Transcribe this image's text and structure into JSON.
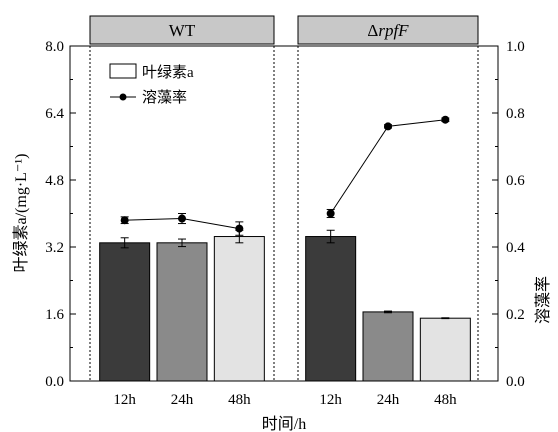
{
  "chart_data": {
    "type": "bar",
    "panels": [
      {
        "title": "WT",
        "categories": [
          "12h",
          "24h",
          "48h"
        ],
        "chlorophyll_a": {
          "values": [
            3.3,
            3.3,
            3.45
          ],
          "errors": [
            0.12,
            0.09,
            0.15
          ],
          "fills": [
            "#3b3b3b",
            "#8a8a8a",
            "#e3e3e3"
          ]
        },
        "lysis_rate": {
          "values": [
            0.48,
            0.485,
            0.455
          ],
          "errors": [
            0.01,
            0.015,
            0.02
          ]
        }
      },
      {
        "title_prefix": "Δ",
        "title_italic": "rpfF",
        "categories": [
          "12h",
          "24h",
          "48h"
        ],
        "chlorophyll_a": {
          "values": [
            3.45,
            1.65,
            1.5
          ],
          "errors": [
            0.15,
            0.02,
            0.01
          ],
          "fills": [
            "#3b3b3b",
            "#8a8a8a",
            "#e3e3e3"
          ]
        },
        "lysis_rate": {
          "values": [
            0.5,
            0.76,
            0.78
          ],
          "errors": [
            0.012,
            0.005,
            0.005
          ]
        }
      }
    ],
    "xlabel": "时间/h",
    "ylabel_left": "叶绿素a/(mg·L⁻¹)",
    "ylabel_right": "溶藻率",
    "ylim_left": [
      0,
      8.0
    ],
    "ylim_right": [
      0,
      1.0
    ],
    "yticks_left": [
      "0.0",
      "1.6",
      "3.2",
      "4.8",
      "6.4",
      "8.0"
    ],
    "yticks_right": [
      "0.0",
      "0.2",
      "0.4",
      "0.6",
      "0.8",
      "1.0"
    ],
    "legend": [
      {
        "label": "叶绿素a",
        "marker": "bar"
      },
      {
        "label": "溶藻率",
        "marker": "line-dot"
      }
    ],
    "legend_position": "top-left"
  }
}
